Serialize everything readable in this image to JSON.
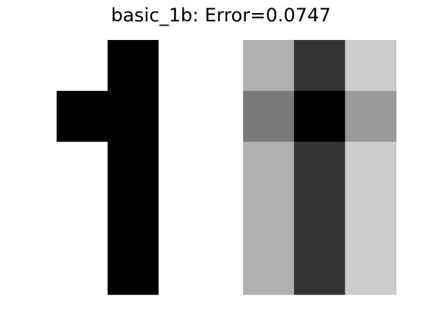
{
  "chart_data": {
    "type": "heatmap",
    "title": "basic_1b: Error=0.0747",
    "colormap": "grayscale (0 = white, 1 = black)",
    "axes_visible": false,
    "panels": [
      {
        "name": "",
        "rows": 5,
        "cols": 3,
        "values": [
          [
            0,
            1,
            0
          ],
          [
            1,
            1,
            0
          ],
          [
            0,
            1,
            0
          ],
          [
            0,
            1,
            0
          ],
          [
            0,
            1,
            0
          ]
        ]
      },
      {
        "name": "",
        "rows": 5,
        "cols": 3,
        "values": [
          [
            0.31,
            0.8,
            0.2
          ],
          [
            0.52,
            1.0,
            0.4
          ],
          [
            0.31,
            0.8,
            0.2
          ],
          [
            0.31,
            0.8,
            0.2
          ],
          [
            0.31,
            0.8,
            0.2
          ]
        ]
      }
    ]
  }
}
